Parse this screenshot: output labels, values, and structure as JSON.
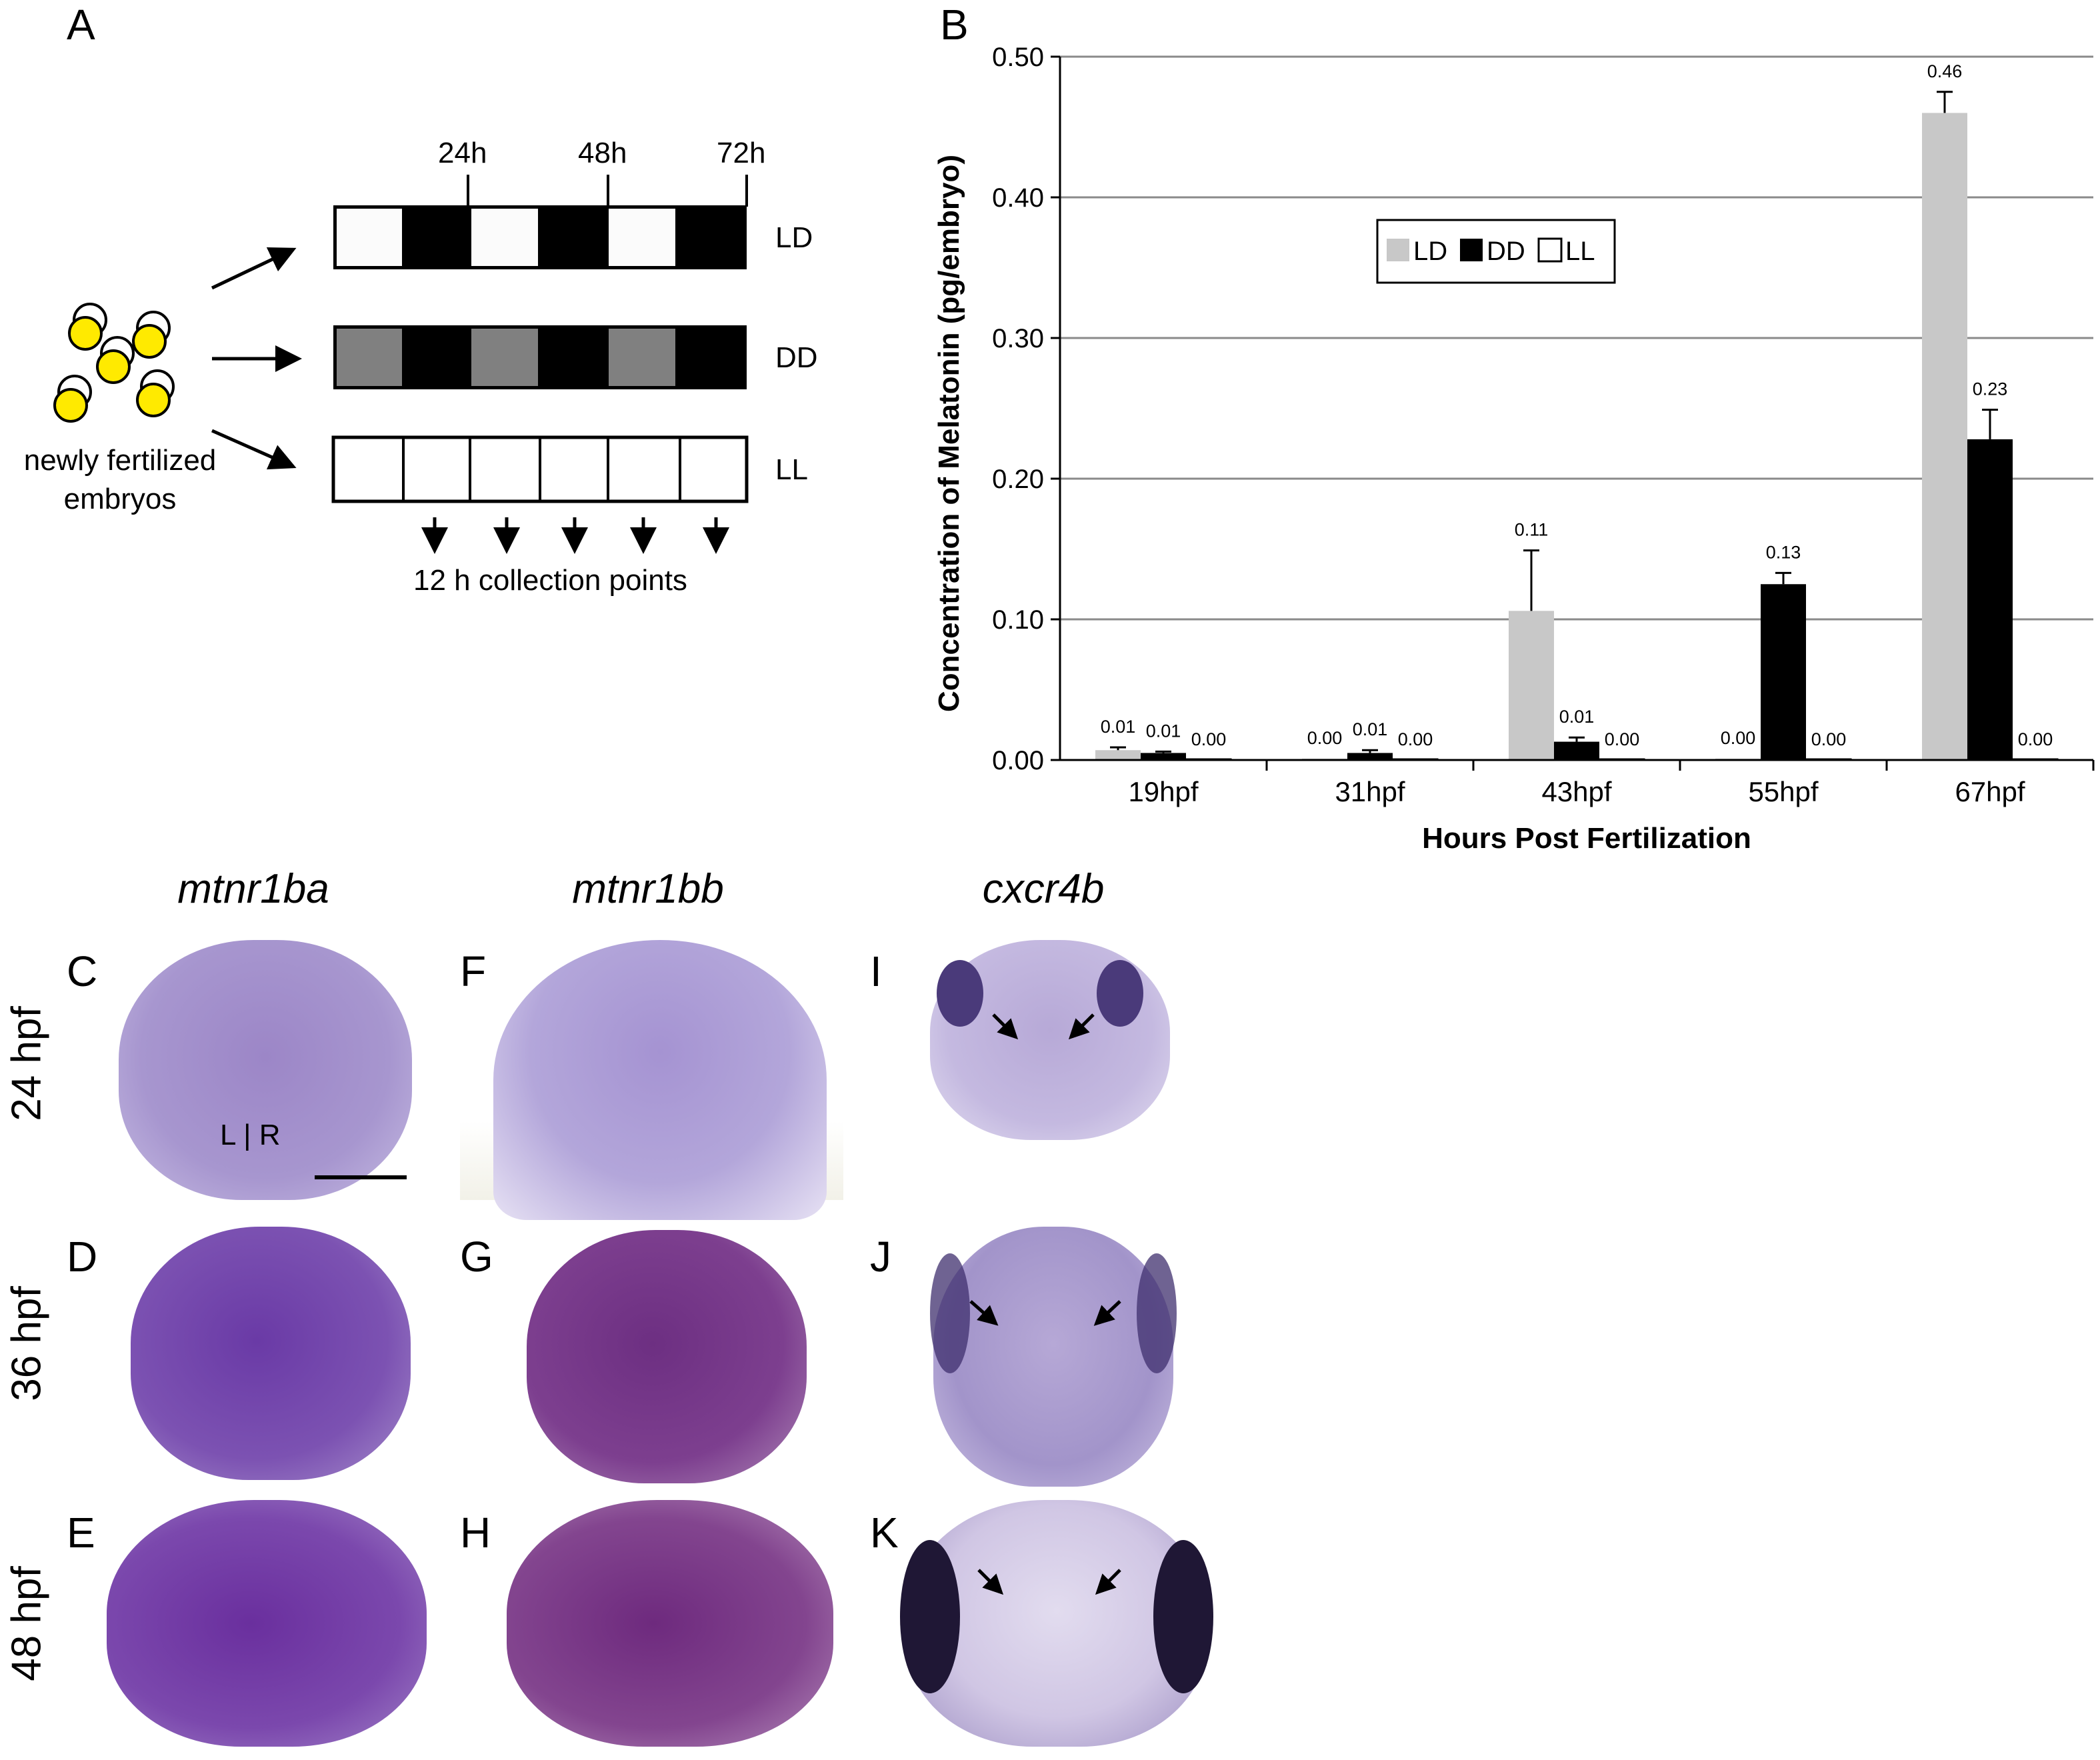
{
  "panel_labels": {
    "a": "A",
    "b": "B",
    "c": "C",
    "d": "D",
    "e": "E",
    "f": "F",
    "g": "G",
    "h": "H",
    "i": "I",
    "j": "J",
    "k": "K"
  },
  "panel_a": {
    "time_labels": [
      "24h",
      "48h",
      "72h"
    ],
    "conditions": [
      "LD",
      "DD",
      "LL"
    ],
    "embryo_label_line1": "newly fertilized",
    "embryo_label_line2": "embryos",
    "collection_label": "12 h collection points"
  },
  "chart_data": {
    "type": "bar",
    "categories": [
      "19hpf",
      "31hpf",
      "43hpf",
      "55hpf",
      "67hpf"
    ],
    "series": [
      {
        "name": "LD",
        "color": "#c8c8c8",
        "values": [
          0.007,
          0.001,
          0.106,
          0.001,
          0.46
        ],
        "errors": [
          0.002,
          0.0,
          0.043,
          0.0,
          0.015
        ],
        "labels": [
          "0.01",
          "0.00",
          "0.11",
          "0.00",
          "0.46"
        ]
      },
      {
        "name": "DD",
        "color": "#000000",
        "values": [
          0.005,
          0.005,
          0.013,
          0.125,
          0.228
        ],
        "errors": [
          0.001,
          0.002,
          0.003,
          0.008,
          0.021
        ],
        "labels": [
          "0.01",
          "0.01",
          "0.01",
          "0.13",
          "0.23"
        ]
      },
      {
        "name": "LL",
        "color": "#ffffff",
        "values": [
          0.0,
          0.0,
          0.0,
          0.0,
          0.0
        ],
        "errors": [
          0,
          0,
          0,
          0,
          0
        ],
        "labels": [
          "0.00",
          "0.00",
          "0.00",
          "0.00",
          "0.00"
        ]
      }
    ],
    "yticks": [
      "0.00",
      "0.10",
      "0.20",
      "0.30",
      "0.40",
      "0.50"
    ],
    "ylim": [
      0,
      0.5
    ],
    "xlabel": "Hours Post Fertilization",
    "ylabel": "Concentration of Melatonin (pg/embryo)",
    "legend_position": "upper-left",
    "grid": true
  },
  "image_panels": {
    "column_labels": [
      "mtnr1ba",
      "mtnr1bb",
      "cxcr4b"
    ],
    "row_labels": [
      "24 hpf",
      "36 hpf",
      "48 hpf"
    ],
    "lr_label": "L | R"
  }
}
